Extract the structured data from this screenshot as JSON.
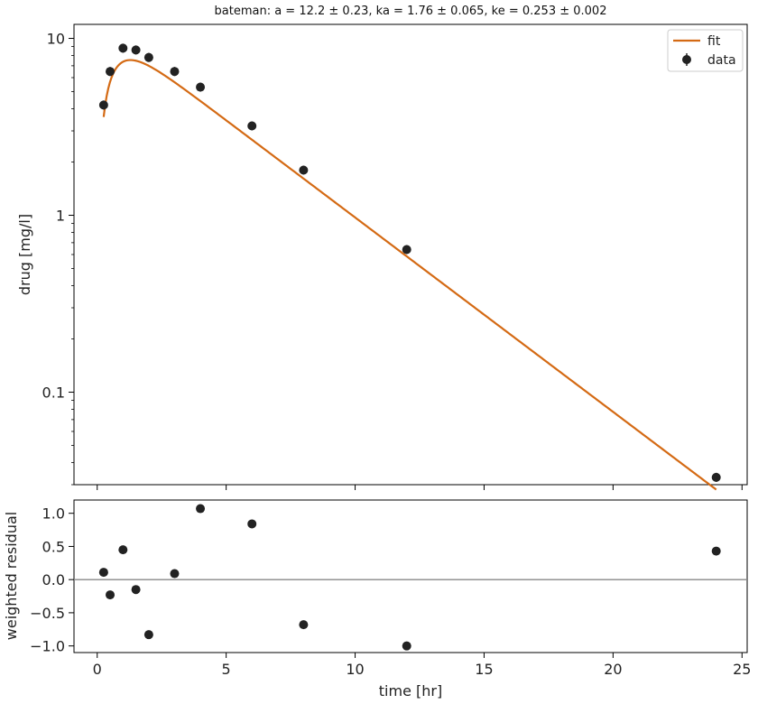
{
  "chart_data": [
    {
      "type": "scatter",
      "title": "bateman: a = 12.2 ± 0.23, ka = 1.76 ± 0.065, ke = 0.253 ± 0.002",
      "xlabel": "",
      "ylabel": "drug [mg/l]",
      "yscale": "log",
      "xlim": [
        -0.9,
        25.2
      ],
      "ylim": [
        0.03,
        12
      ],
      "yticks": [
        0.1,
        1,
        10
      ],
      "ytick_labels": [
        "0.1",
        "1",
        "10"
      ],
      "xticks": [
        0,
        5,
        10,
        15,
        20,
        25
      ],
      "legend": {
        "placement": "top-right",
        "entries": [
          "fit",
          "data"
        ]
      },
      "fit": {
        "name": "fit",
        "model": "bateman",
        "a": 12.2,
        "ka": 1.76,
        "ke": 0.253,
        "t_range": [
          0.25,
          24
        ],
        "color": "#d46a14"
      },
      "series": [
        {
          "name": "data",
          "x": [
            0.25,
            0.5,
            1,
            1.5,
            2,
            3,
            4,
            6,
            8,
            12,
            24
          ],
          "y": [
            4.2,
            6.5,
            8.8,
            8.6,
            7.8,
            6.5,
            5.3,
            3.2,
            1.8,
            0.64,
            0.033
          ],
          "color": "#222222"
        }
      ]
    },
    {
      "type": "scatter",
      "xlabel": "time [hr]",
      "ylabel": "weighted residual",
      "xlim": [
        -0.9,
        25.2
      ],
      "ylim": [
        -1.1,
        1.2
      ],
      "xticks": [
        0,
        5,
        10,
        15,
        20,
        25
      ],
      "xtick_labels": [
        "0",
        "5",
        "10",
        "15",
        "20",
        "25"
      ],
      "yticks": [
        -1.0,
        -0.5,
        0.0,
        0.5,
        1.0
      ],
      "ytick_labels": [
        "−1.0",
        "−0.5",
        "0.0",
        "0.5",
        "1.0"
      ],
      "reference_line_y": 0,
      "series": [
        {
          "x": [
            0.25,
            0.5,
            1,
            1.5,
            2,
            3,
            4,
            6,
            8,
            12,
            24
          ],
          "y": [
            0.11,
            -0.23,
            0.45,
            -0.15,
            -0.83,
            0.09,
            1.07,
            0.84,
            -0.68,
            -1.0,
            0.43
          ],
          "color": "#222222"
        }
      ]
    }
  ]
}
